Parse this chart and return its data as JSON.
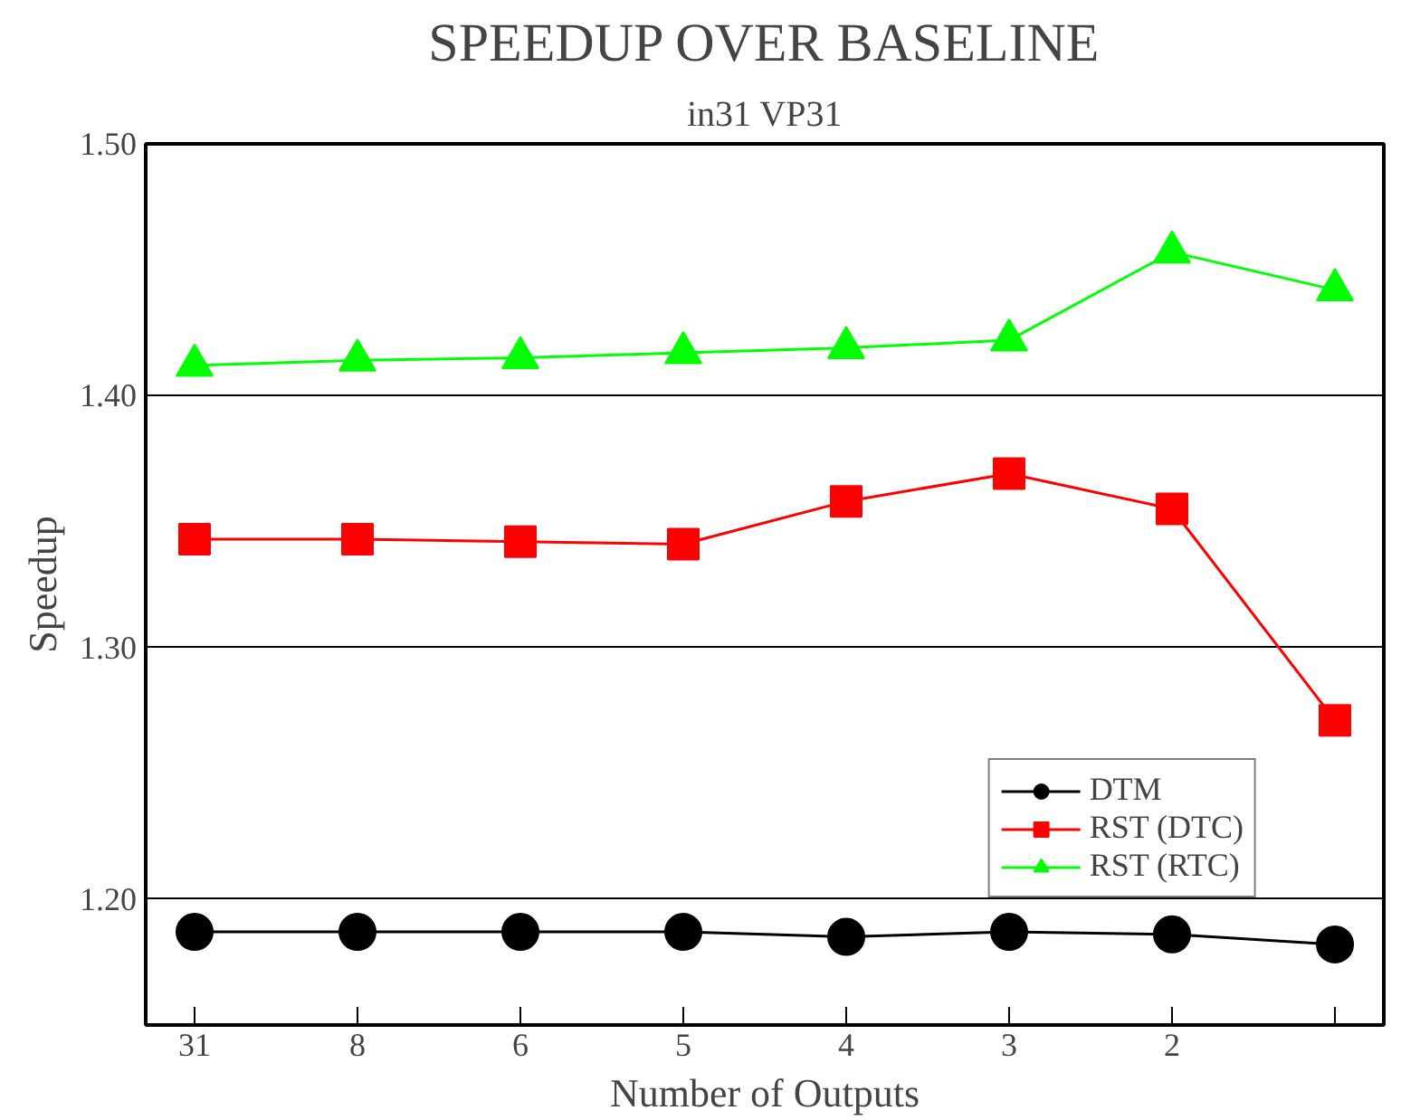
{
  "chart_data": {
    "type": "line",
    "title": "SPEEDUP OVER BASELINE",
    "subtitle": "in31 VP31",
    "xlabel": "Number of Outputs",
    "ylabel": "Speedup",
    "categories": [
      "31",
      "8",
      "6",
      "5",
      "4",
      "3",
      "2",
      null
    ],
    "series": [
      {
        "name": "DTM",
        "color": "#000000",
        "marker": "circle",
        "values": [
          1.187,
          1.187,
          1.187,
          1.187,
          1.185,
          1.187,
          1.186,
          1.182
        ]
      },
      {
        "name": "RST (DTC)",
        "color": "#ff0000",
        "marker": "square",
        "values": [
          1.343,
          1.343,
          1.342,
          1.341,
          1.358,
          1.369,
          1.355,
          1.271
        ]
      },
      {
        "name": "RST (RTC)",
        "color": "#00ff00",
        "marker": "triangle",
        "values": [
          1.412,
          1.414,
          1.415,
          1.417,
          1.419,
          1.422,
          1.457,
          1.442
        ]
      }
    ],
    "ylim": [
      1.15,
      1.5
    ],
    "yticks": [
      {
        "value": 1.2,
        "label": "1.20"
      },
      {
        "value": 1.3,
        "label": "1.30"
      },
      {
        "value": 1.4,
        "label": "1.40"
      },
      {
        "value": 1.5,
        "label": "1.50"
      }
    ],
    "grid": "y",
    "legend": "bottom right",
    "line_style": "solid"
  }
}
